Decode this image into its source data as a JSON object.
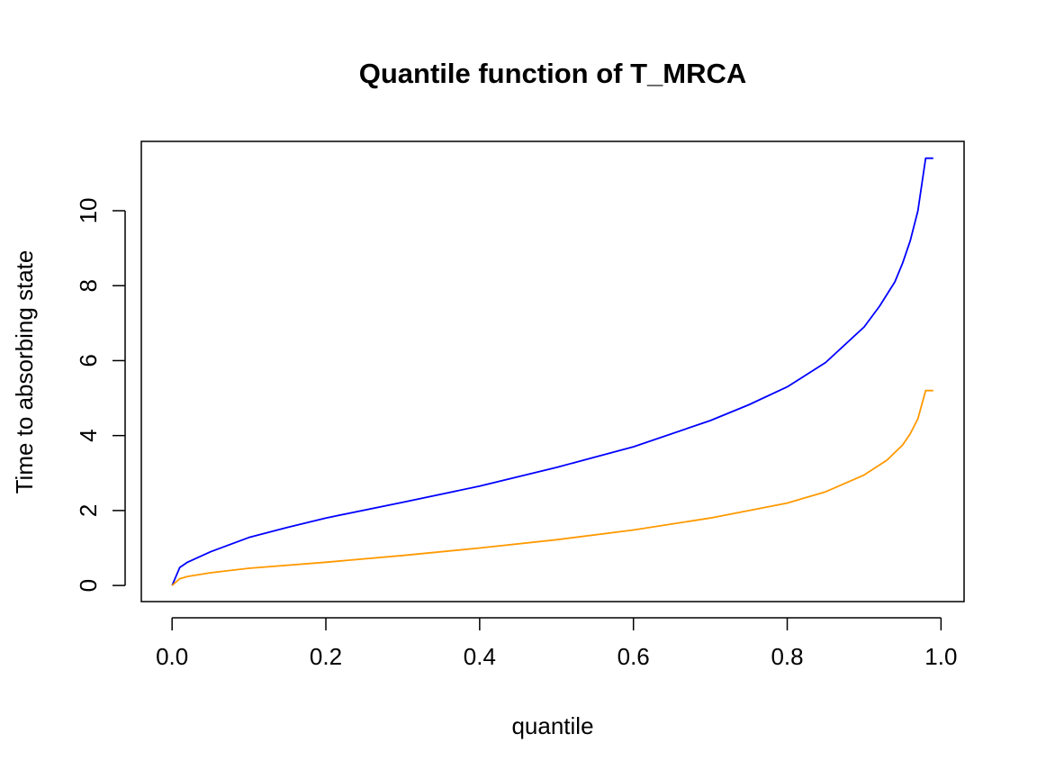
{
  "chart_data": {
    "type": "line",
    "title": "Quantile function of T_MRCA",
    "xlabel": "quantile",
    "ylabel": "Time to absorbing state",
    "xlim": [
      -0.04,
      1.03
    ],
    "ylim": [
      -0.43,
      11.85
    ],
    "x_ticks": [
      0.0,
      0.2,
      0.4,
      0.6,
      0.8,
      1.0
    ],
    "x_tick_labels": [
      "0.0",
      "0.2",
      "0.4",
      "0.6",
      "0.8",
      "1.0"
    ],
    "y_ticks": [
      0,
      2,
      4,
      6,
      8,
      10
    ],
    "y_tick_labels": [
      "0",
      "2",
      "4",
      "6",
      "8",
      "10"
    ],
    "grid": false,
    "legend": "none",
    "series": [
      {
        "color": "#0000ff",
        "x": [
          0.0,
          0.01,
          0.02,
          0.05,
          0.1,
          0.15,
          0.2,
          0.3,
          0.4,
          0.5,
          0.6,
          0.7,
          0.75,
          0.8,
          0.85,
          0.9,
          0.92,
          0.94,
          0.95,
          0.96,
          0.97,
          0.98,
          0.99
        ],
        "y": [
          0.0,
          0.48,
          0.62,
          0.9,
          1.28,
          1.55,
          1.8,
          2.22,
          2.65,
          3.15,
          3.7,
          4.4,
          4.82,
          5.3,
          5.95,
          6.9,
          7.45,
          8.1,
          8.6,
          9.2,
          10.0,
          11.4,
          11.4
        ]
      },
      {
        "color": "#ff9900",
        "x": [
          0.0,
          0.01,
          0.02,
          0.05,
          0.1,
          0.2,
          0.3,
          0.4,
          0.5,
          0.6,
          0.7,
          0.8,
          0.85,
          0.9,
          0.93,
          0.95,
          0.96,
          0.97,
          0.98,
          0.99
        ],
        "y": [
          0.0,
          0.18,
          0.24,
          0.34,
          0.46,
          0.62,
          0.8,
          1.0,
          1.22,
          1.48,
          1.8,
          2.2,
          2.5,
          2.95,
          3.35,
          3.75,
          4.05,
          4.45,
          5.2,
          5.2
        ]
      }
    ]
  }
}
